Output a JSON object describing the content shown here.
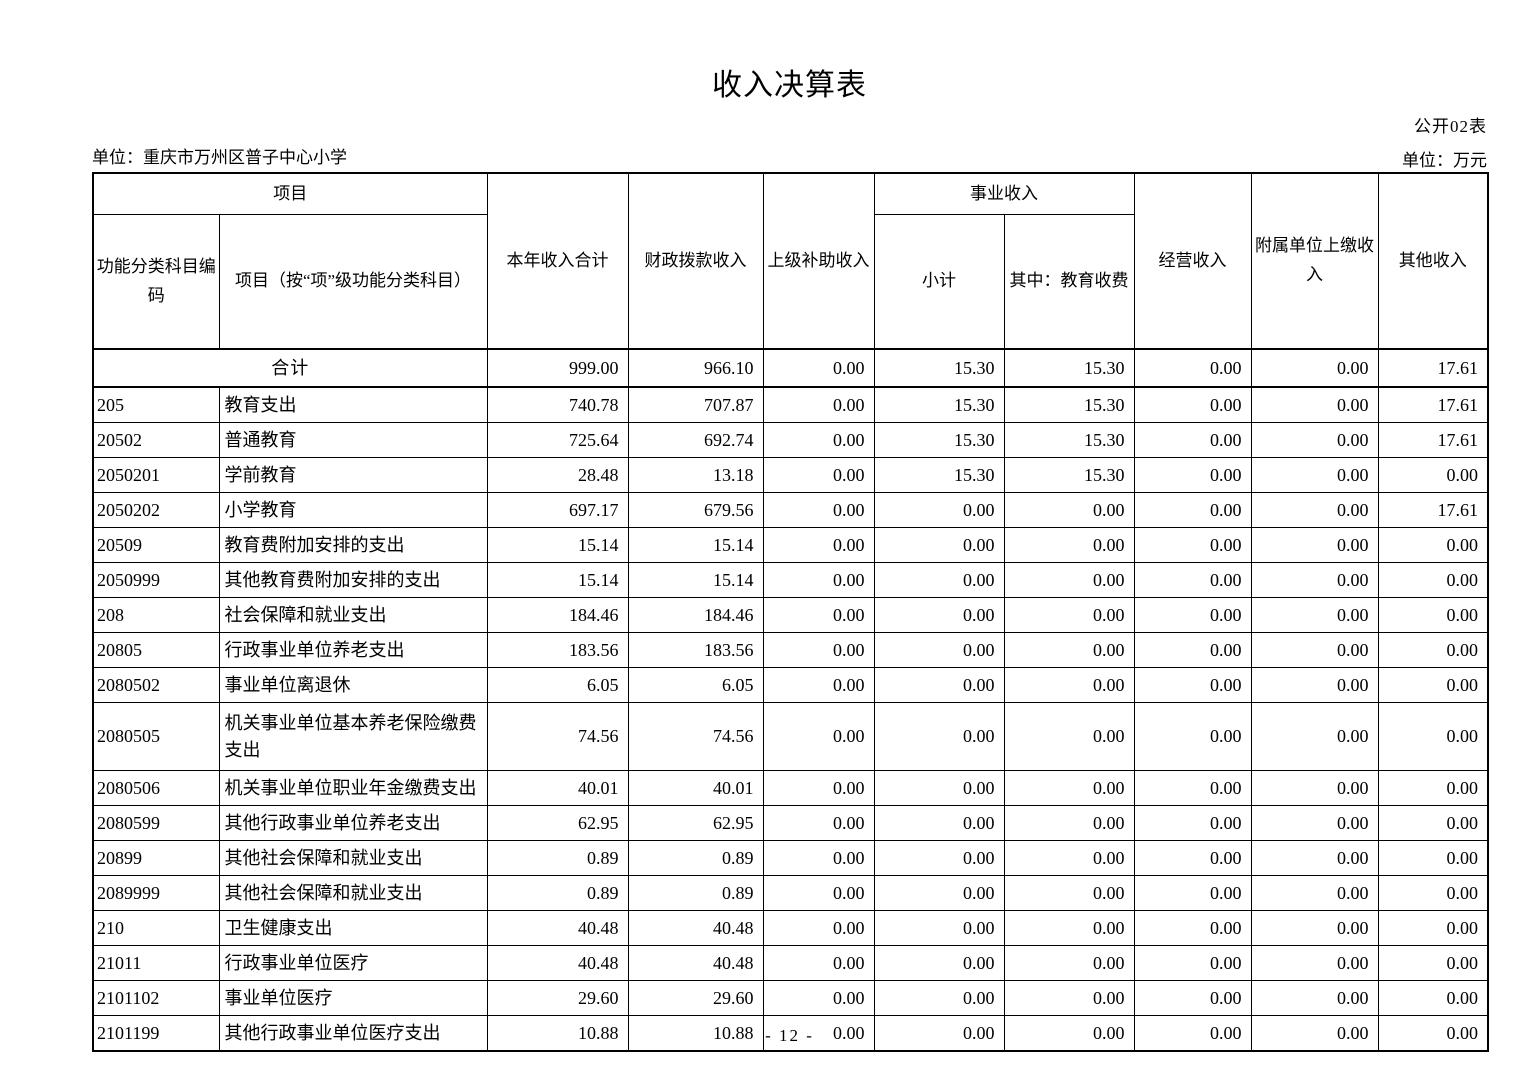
{
  "page": {
    "title": "收入决算表",
    "table_code": "公开02表",
    "unit_name_label": "单位：重庆市万州区普子中心小学",
    "unit_label": "单位：万元",
    "page_number": "- 12 -"
  },
  "table": {
    "headers": {
      "project_group": "项目",
      "code": "功能分类科目编码",
      "item": "项目（按“项”级功能分类科目）",
      "total_income": "本年收入合计",
      "fiscal_allocation": "财政拨款收入",
      "superior_subsidy": "上级补助收入",
      "business_income_group": "事业收入",
      "subtotal": "小计",
      "education_fee": "其中：教育收费",
      "operating_income": "经营收入",
      "affiliated_remittance": "附属单位上缴收入",
      "other_income": "其他收入"
    },
    "rows": [
      {
        "code": "",
        "name": "合计",
        "merged": true,
        "values": [
          "999.00",
          "966.10",
          "0.00",
          "15.30",
          "15.30",
          "0.00",
          "0.00",
          "17.61"
        ]
      },
      {
        "code": "205",
        "name": "教育支出",
        "values": [
          "740.78",
          "707.87",
          "0.00",
          "15.30",
          "15.30",
          "0.00",
          "0.00",
          "17.61"
        ]
      },
      {
        "code": "20502",
        "name": "普通教育",
        "values": [
          "725.64",
          "692.74",
          "0.00",
          "15.30",
          "15.30",
          "0.00",
          "0.00",
          "17.61"
        ]
      },
      {
        "code": "2050201",
        "name": "学前教育",
        "values": [
          "28.48",
          "13.18",
          "0.00",
          "15.30",
          "15.30",
          "0.00",
          "0.00",
          "0.00"
        ]
      },
      {
        "code": "2050202",
        "name": "小学教育",
        "values": [
          "697.17",
          "679.56",
          "0.00",
          "0.00",
          "0.00",
          "0.00",
          "0.00",
          "17.61"
        ]
      },
      {
        "code": "20509",
        "name": "教育费附加安排的支出",
        "values": [
          "15.14",
          "15.14",
          "0.00",
          "0.00",
          "0.00",
          "0.00",
          "0.00",
          "0.00"
        ]
      },
      {
        "code": "2050999",
        "name": "其他教育费附加安排的支出",
        "values": [
          "15.14",
          "15.14",
          "0.00",
          "0.00",
          "0.00",
          "0.00",
          "0.00",
          "0.00"
        ]
      },
      {
        "code": "208",
        "name": "社会保障和就业支出",
        "values": [
          "184.46",
          "184.46",
          "0.00",
          "0.00",
          "0.00",
          "0.00",
          "0.00",
          "0.00"
        ]
      },
      {
        "code": "20805",
        "name": "行政事业单位养老支出",
        "values": [
          "183.56",
          "183.56",
          "0.00",
          "0.00",
          "0.00",
          "0.00",
          "0.00",
          "0.00"
        ]
      },
      {
        "code": "2080502",
        "name": "事业单位离退休",
        "values": [
          "6.05",
          "6.05",
          "0.00",
          "0.00",
          "0.00",
          "0.00",
          "0.00",
          "0.00"
        ]
      },
      {
        "code": "2080505",
        "name": "机关事业单位基本养老保险缴费支出",
        "tall": true,
        "values": [
          "74.56",
          "74.56",
          "0.00",
          "0.00",
          "0.00",
          "0.00",
          "0.00",
          "0.00"
        ]
      },
      {
        "code": "2080506",
        "name": "机关事业单位职业年金缴费支出",
        "values": [
          "40.01",
          "40.01",
          "0.00",
          "0.00",
          "0.00",
          "0.00",
          "0.00",
          "0.00"
        ]
      },
      {
        "code": "2080599",
        "name": "其他行政事业单位养老支出",
        "values": [
          "62.95",
          "62.95",
          "0.00",
          "0.00",
          "0.00",
          "0.00",
          "0.00",
          "0.00"
        ]
      },
      {
        "code": "20899",
        "name": "其他社会保障和就业支出",
        "values": [
          "0.89",
          "0.89",
          "0.00",
          "0.00",
          "0.00",
          "0.00",
          "0.00",
          "0.00"
        ]
      },
      {
        "code": "2089999",
        "name": "其他社会保障和就业支出",
        "values": [
          "0.89",
          "0.89",
          "0.00",
          "0.00",
          "0.00",
          "0.00",
          "0.00",
          "0.00"
        ]
      },
      {
        "code": "210",
        "name": "卫生健康支出",
        "values": [
          "40.48",
          "40.48",
          "0.00",
          "0.00",
          "0.00",
          "0.00",
          "0.00",
          "0.00"
        ]
      },
      {
        "code": "21011",
        "name": "行政事业单位医疗",
        "values": [
          "40.48",
          "40.48",
          "0.00",
          "0.00",
          "0.00",
          "0.00",
          "0.00",
          "0.00"
        ]
      },
      {
        "code": "2101102",
        "name": "事业单位医疗",
        "values": [
          "29.60",
          "29.60",
          "0.00",
          "0.00",
          "0.00",
          "0.00",
          "0.00",
          "0.00"
        ]
      },
      {
        "code": "2101199",
        "name": "其他行政事业单位医疗支出",
        "values": [
          "10.88",
          "10.88",
          "0.00",
          "0.00",
          "0.00",
          "0.00",
          "0.00",
          "0.00"
        ]
      }
    ]
  }
}
